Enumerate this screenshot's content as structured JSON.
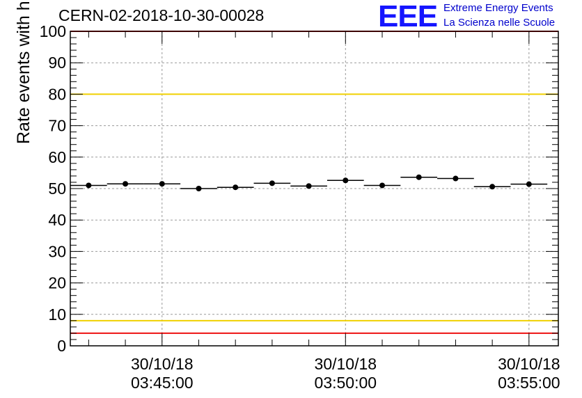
{
  "chart_data": {
    "type": "scatter",
    "title": "CERN-02-2018-10-30-00028",
    "ylabel": "Rate events with hits [Hz]",
    "xlabel": "",
    "ylim": [
      0,
      100
    ],
    "xlim_minutes": [
      0,
      13.3
    ],
    "grid": true,
    "y_ticks": [
      "0",
      "10",
      "20",
      "30",
      "40",
      "50",
      "60",
      "70",
      "80",
      "90",
      "100"
    ],
    "x_ticks": [
      {
        "date": "30/10/18",
        "time": "03:45:00",
        "minute": 2.5
      },
      {
        "date": "30/10/18",
        "time": "03:50:00",
        "minute": 7.5
      },
      {
        "date": "30/10/18",
        "time": "03:55:00",
        "minute": 12.5
      }
    ],
    "x_start_time": "03:42:30",
    "bin_width_minutes": 1,
    "points": [
      {
        "minute": 0.5,
        "value": 51.0
      },
      {
        "minute": 1.5,
        "value": 51.5
      },
      {
        "minute": 2.5,
        "value": 51.5
      },
      {
        "minute": 3.5,
        "value": 50.0
      },
      {
        "minute": 4.5,
        "value": 50.4
      },
      {
        "minute": 5.5,
        "value": 51.7
      },
      {
        "minute": 6.5,
        "value": 50.8
      },
      {
        "minute": 7.5,
        "value": 52.6
      },
      {
        "minute": 8.5,
        "value": 51.0
      },
      {
        "minute": 9.5,
        "value": 53.6
      },
      {
        "minute": 10.5,
        "value": 53.2
      },
      {
        "minute": 11.5,
        "value": 50.6
      },
      {
        "minute": 12.5,
        "value": 51.4
      }
    ],
    "reference_lines": [
      {
        "value": 100,
        "color": "#ee1111"
      },
      {
        "value": 80,
        "color": "#f0d000"
      },
      {
        "value": 8,
        "color": "#f0d000"
      },
      {
        "value": 4,
        "color": "#ee1111"
      }
    ]
  },
  "logo": {
    "mark": "EEE",
    "line1": "Extreme Energy Events",
    "line2": "La Scienza nelle Scuole"
  }
}
